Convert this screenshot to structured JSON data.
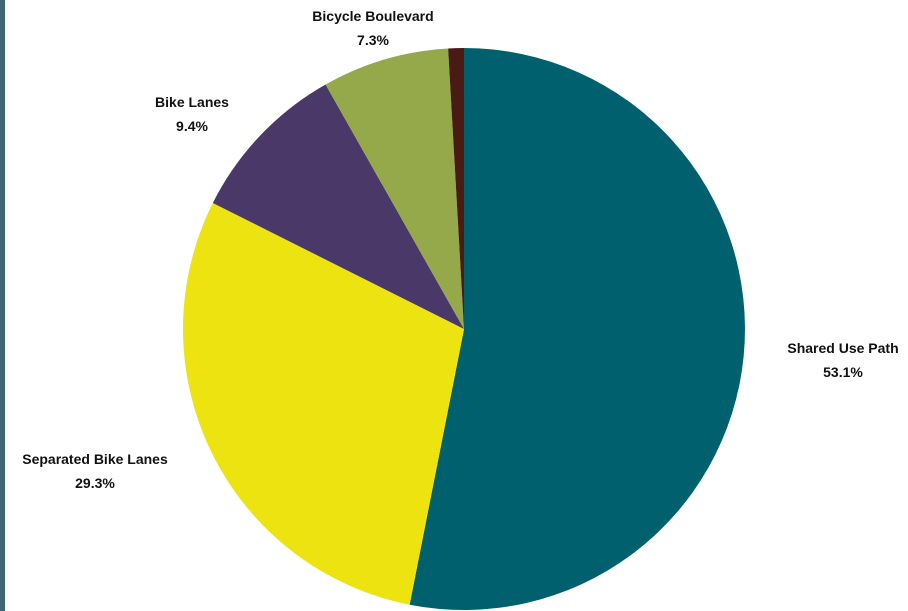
{
  "chart_data": {
    "type": "pie",
    "title": "",
    "start_angle_deg": 0,
    "direction": "clockwise",
    "slices": [
      {
        "label": "Shared Use Path",
        "value": 53.1,
        "value_label": "53.1%",
        "color": "#00606e"
      },
      {
        "label": "Separated Bike Lanes",
        "value": 29.3,
        "value_label": "29.3%",
        "color": "#ede310"
      },
      {
        "label": "Bike Lanes",
        "value": 9.4,
        "value_label": "9.4%",
        "color": "#4a3868"
      },
      {
        "label": "Bicycle Boulevard",
        "value": 7.3,
        "value_label": "7.3%",
        "color": "#95a84a"
      },
      {
        "label": "",
        "value": 0.9,
        "value_label": "",
        "color": "#4a1a14"
      }
    ]
  },
  "colors": {
    "left_bar": "#3c6670"
  }
}
